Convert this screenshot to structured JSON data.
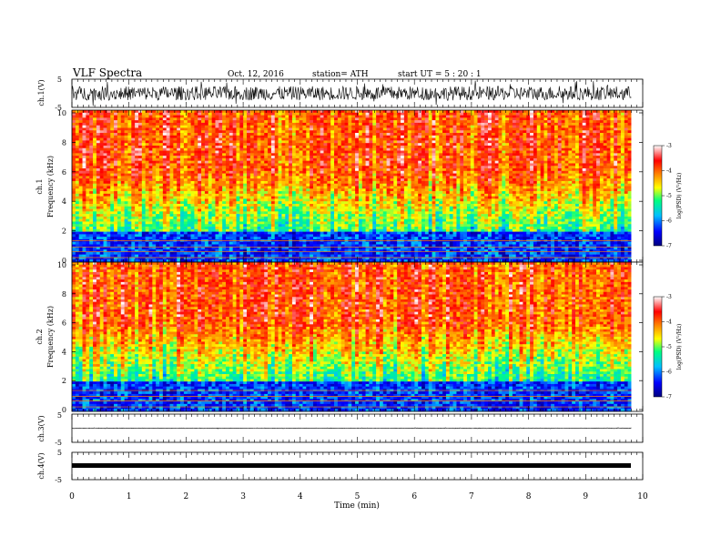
{
  "header": {
    "title": "VLF  Spectra",
    "date": "Oct. 12, 2016",
    "station": "station= ATH",
    "start": "start  UT  =   5  : 20 : 1"
  },
  "panels": {
    "ch1_wave": {
      "ylabel": "ch.1(V)",
      "ticks": [
        "5",
        "-5"
      ]
    },
    "ch1_spec": {
      "ylabel_line1": "ch.1",
      "ylabel_line2": "Frequency (kHz)",
      "ticks": [
        "0",
        "2",
        "4",
        "6",
        "8",
        "10"
      ]
    },
    "ch2_spec": {
      "ylabel_line1": "ch.2",
      "ylabel_line2": "Frequency (kHz)",
      "ticks": [
        "0",
        "2",
        "4",
        "6",
        "8",
        "10"
      ]
    },
    "ch3_wave": {
      "ylabel": "ch.3(V)",
      "ticks": [
        "5",
        "-5"
      ]
    },
    "ch4_wave": {
      "ylabel": "ch.4(V)",
      "ticks": [
        "5",
        "-5"
      ]
    }
  },
  "colorbar": {
    "label": "log(PSD) (V²/Hz)",
    "ticks": [
      "-3",
      "-4",
      "-5",
      "-6",
      "-7"
    ]
  },
  "xaxis": {
    "label": "Time  (min)",
    "ticks": [
      "0",
      "1",
      "2",
      "3",
      "4",
      "5",
      "6",
      "7",
      "8",
      "9",
      "10"
    ]
  },
  "chart_data": {
    "type": "heatmap",
    "title": "VLF  Spectra",
    "xlabel": "Time  (min)",
    "xlim": [
      0,
      10
    ],
    "data_end_min": 9.8,
    "spectrogram_panels": [
      "ch.1",
      "ch.2"
    ],
    "ylabel": "Frequency (kHz)",
    "ylim": [
      0,
      10
    ],
    "colorbar_range": [
      -7,
      -3
    ],
    "colormap": [
      "#000080",
      "#0000ff",
      "#00bfff",
      "#00ff80",
      "#ffff00",
      "#ff8000",
      "#ff0000",
      "#ffffff"
    ],
    "description_levels": {
      "below_2kHz": -6.3,
      "2_to_4kHz": -5.3,
      "4_to_6kHz": -4.6,
      "6_to_10kHz": -3.9
    },
    "waveform_panels": [
      {
        "name": "ch.1(V)",
        "ylim": [
          -5,
          5
        ],
        "noise_amplitude": 2.5
      },
      {
        "name": "ch.3(V)",
        "ylim": [
          -5,
          5
        ],
        "noise_amplitude": 0.1
      },
      {
        "name": "ch.4(V)",
        "ylim": [
          -5,
          5
        ],
        "noise_amplitude": 0.3
      }
    ]
  }
}
